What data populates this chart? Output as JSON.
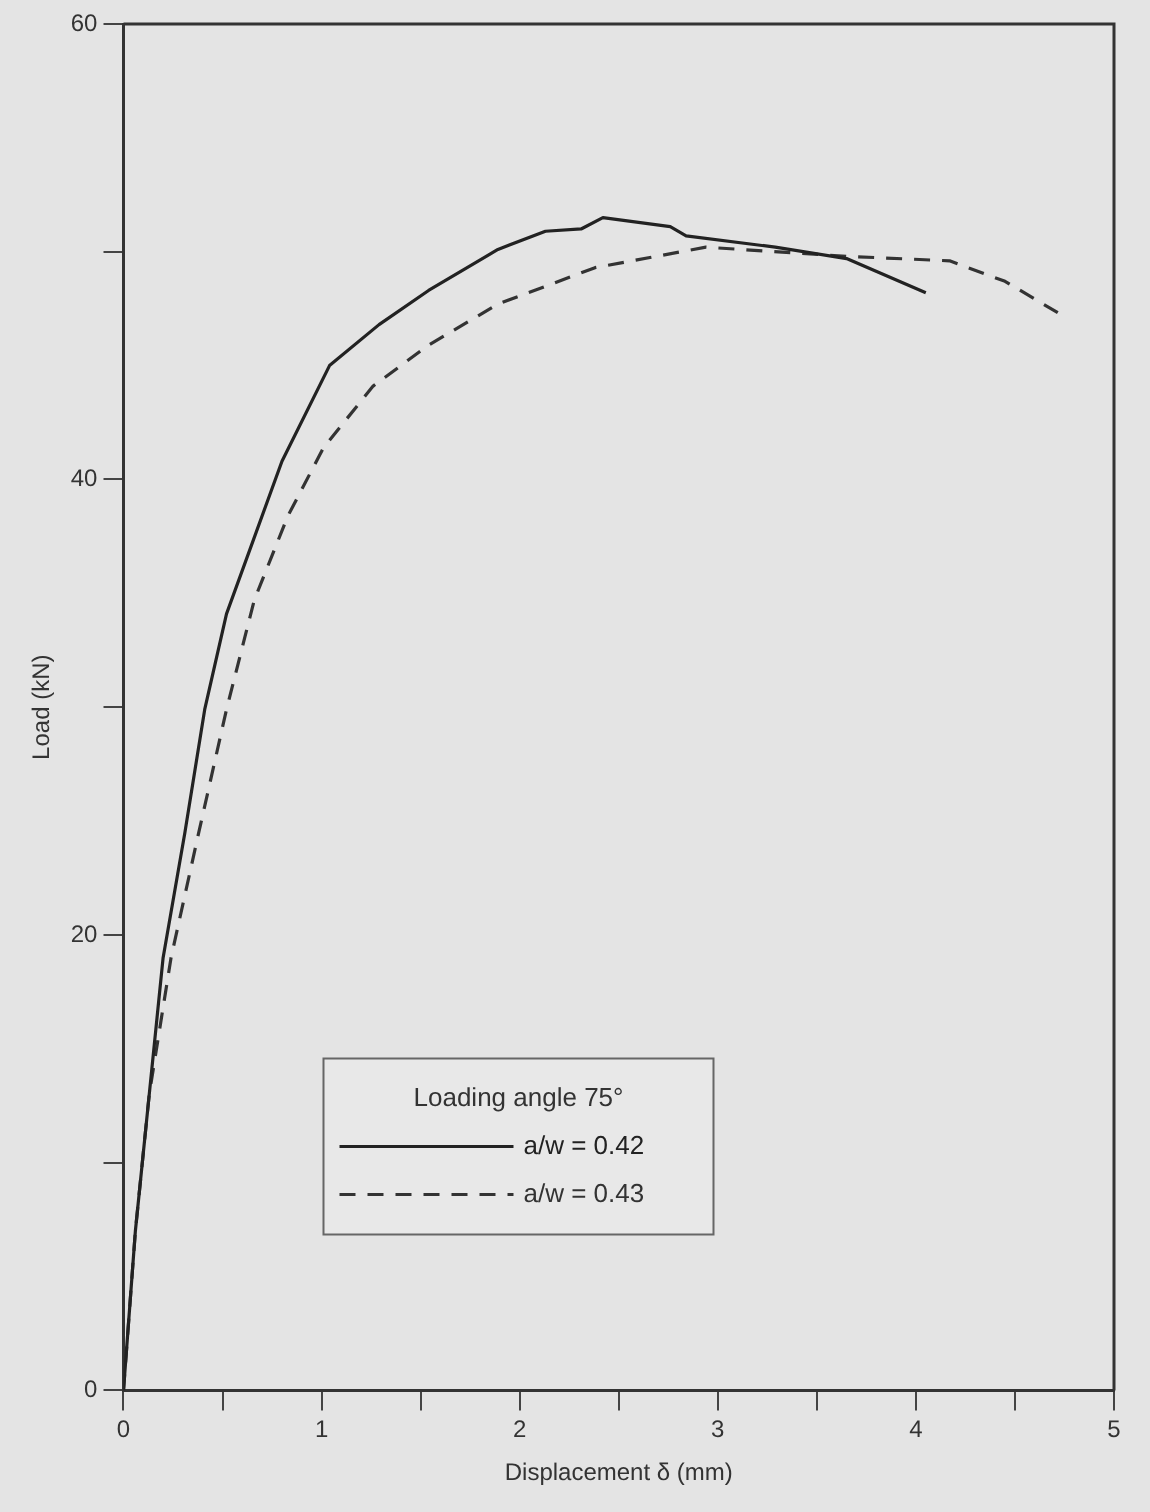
{
  "chart_data": {
    "type": "line",
    "xlabel": "Displacement δ (mm)",
    "ylabel": "Load (kN)",
    "legend_title": "Loading angle 75°",
    "xlim": [
      0,
      5
    ],
    "ylim": [
      0,
      60
    ],
    "xticks": [
      0,
      {
        "value": 0.5,
        "label": null
      },
      1,
      {
        "value": 1.5,
        "label": null
      },
      2,
      {
        "value": 2.5,
        "label": null
      },
      3,
      {
        "value": 3.5,
        "label": null
      },
      4,
      {
        "value": 4.5,
        "label": null
      },
      5
    ],
    "yticks": [
      0,
      {
        "value": 10,
        "label": null
      },
      20,
      {
        "value": 30,
        "label": null
      },
      40,
      {
        "value": 50,
        "label": null
      },
      60
    ],
    "grid": false,
    "legend": "bottom left",
    "marker": "none",
    "series": [
      {
        "name": "a/w = 0.42",
        "color": "#222222",
        "line_style": "solid",
        "x": [
          0,
          0.06,
          0.13,
          0.2,
          0.31,
          0.41,
          0.52,
          0.8,
          1.04,
          1.29,
          1.54,
          1.89,
          2.13,
          2.31,
          2.42,
          2.76,
          2.84,
          3.29,
          3.65,
          4.05
        ],
        "values": [
          0,
          7,
          13,
          19,
          24.5,
          29.9,
          34.1,
          40.8,
          45,
          46.8,
          48.3,
          50.1,
          50.9,
          51,
          51.5,
          51.1,
          50.7,
          50.2,
          49.7,
          48.2
        ]
      },
      {
        "name": "a/w = 0.43",
        "color": "#333333",
        "line_style": "dashed",
        "x": [
          0,
          0.06,
          0.13,
          0.24,
          0.38,
          0.52,
          0.66,
          0.83,
          1.01,
          1.26,
          1.54,
          1.89,
          2.38,
          2.94,
          3.65,
          4.17,
          4.45,
          4.74
        ],
        "values": [
          0,
          7,
          13,
          19,
          24.5,
          29.9,
          34.7,
          38.4,
          41.4,
          44.1,
          45.9,
          47.7,
          49.3,
          50.2,
          49.8,
          49.6,
          48.7,
          47.2
        ]
      }
    ]
  }
}
